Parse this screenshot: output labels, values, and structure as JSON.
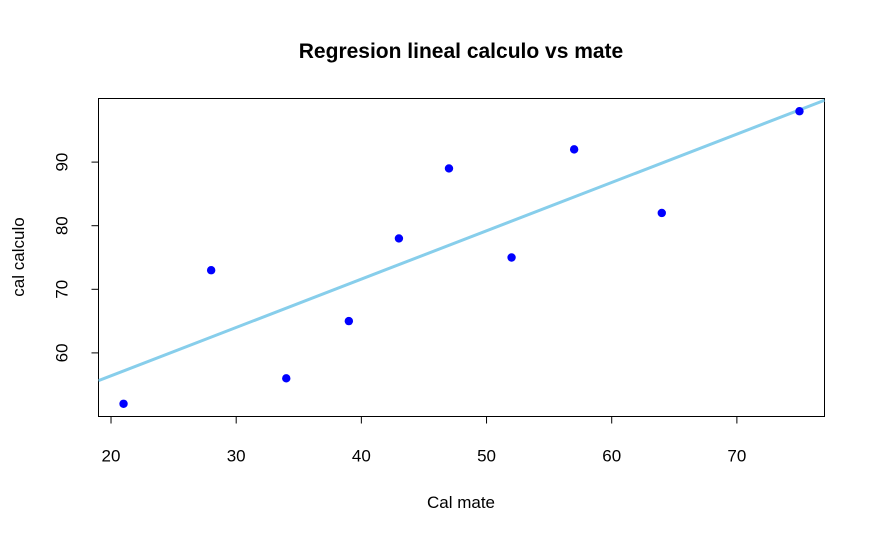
{
  "chart_data": {
    "type": "scatter",
    "title": "Regresion lineal calculo vs mate",
    "xlabel": "Cal mate",
    "ylabel": "cal calculo",
    "xlim": [
      19,
      77
    ],
    "ylim": [
      50,
      100
    ],
    "xticks": [
      20,
      30,
      40,
      50,
      60,
      70
    ],
    "yticks": [
      60,
      70,
      80,
      90
    ],
    "grid": false,
    "series": [
      {
        "x": [
          21,
          28,
          34,
          39,
          43,
          47,
          52,
          57,
          64,
          75
        ],
        "y": [
          52,
          73,
          56,
          65,
          78,
          89,
          75,
          92,
          82,
          98
        ]
      }
    ],
    "regression_line": {
      "intercept": 41.2,
      "slope": 0.76
    },
    "colors": {
      "points": "#0000ff",
      "line": "#87ceeb"
    }
  }
}
